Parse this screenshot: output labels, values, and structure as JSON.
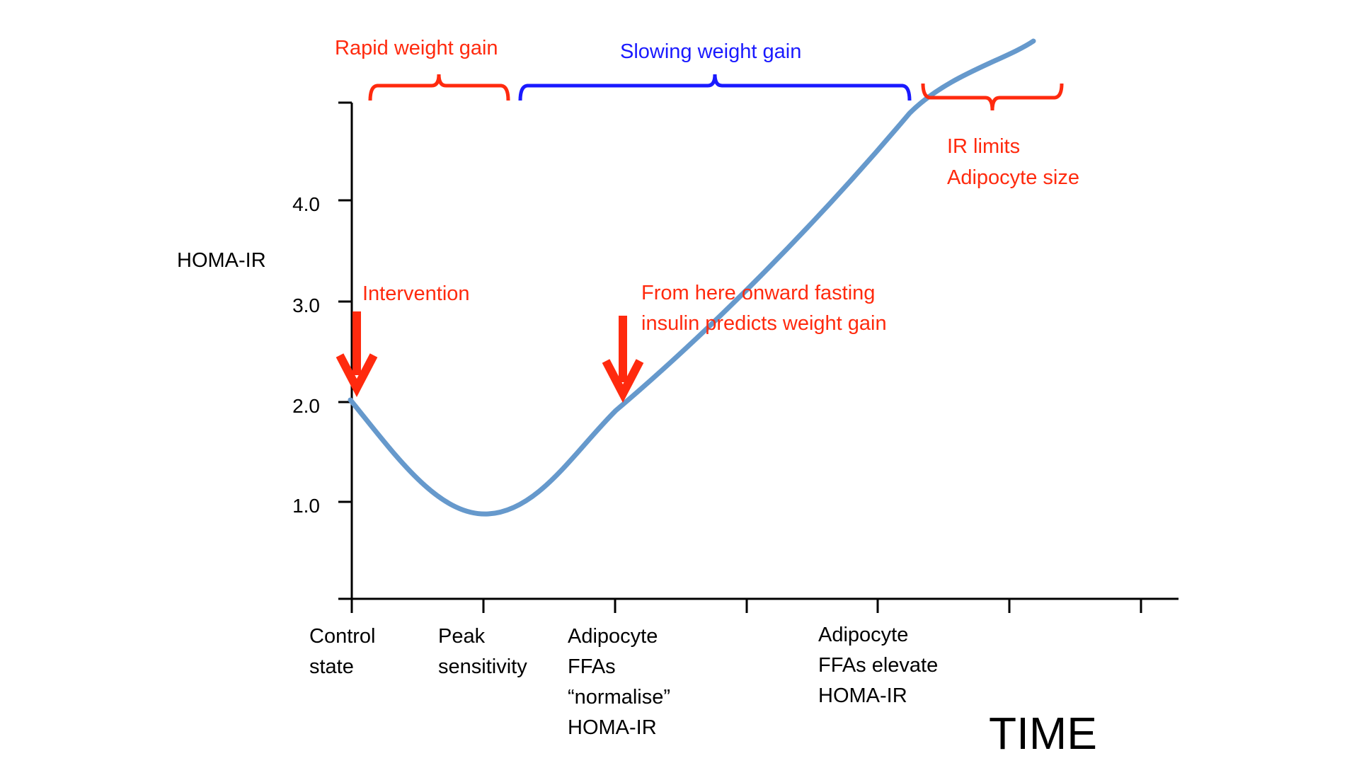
{
  "y_axis": {
    "label": "HOMA-IR",
    "ticks": [
      "1.0",
      "2.0",
      "3.0",
      "4.0"
    ]
  },
  "x_axis": {
    "label": "TIME",
    "stages": [
      {
        "lines": [
          "Control",
          "state"
        ]
      },
      {
        "lines": [
          "Peak",
          "sensitivity"
        ]
      },
      {
        "lines": [
          "Adipocyte",
          "FFAs",
          "“normalise”",
          "HOMA-IR"
        ]
      },
      {
        "lines": [
          "Adipocyte",
          "FFAs elevate",
          "HOMA-IR"
        ]
      }
    ]
  },
  "phases": {
    "rapid": "Rapid weight gain",
    "slowing": "Slowing weight gain",
    "limit_line1": "IR limits",
    "limit_line2": "Adipocyte size"
  },
  "annotations": {
    "intervention": "Intervention",
    "predict_line1": "From here onward fasting",
    "predict_line2": "insulin predicts weight gain"
  },
  "colors": {
    "curve": "#6699cc",
    "red": "#ff2a0e",
    "blue": "#1a1aff",
    "axis": "#000000"
  }
}
